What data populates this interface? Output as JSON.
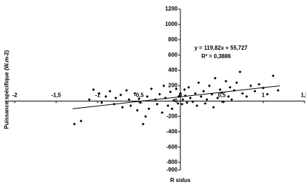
{
  "chart_data": {
    "type": "scatter",
    "x_label": "R sidus",
    "y_label": "Puissance spécifique (W.m-2)",
    "xlim": [
      -2,
      1.5
    ],
    "ylim": [
      -900,
      1200
    ],
    "xticks": [
      -2,
      {
        "value": -1.5,
        "label": "-1,5"
      },
      -1,
      {
        "value": -0.5,
        "label": "-0,5"
      },
      0,
      {
        "value": 0.5,
        "label": "0,5"
      },
      1,
      {
        "value": 1.5,
        "label": "1,5"
      }
    ],
    "yticks": [
      1200,
      1000,
      800,
      600,
      400,
      200,
      0,
      -200,
      -400,
      -600,
      -800,
      -900
    ],
    "series": [
      {
        "color": "#000000",
        "x": [
          -1.28,
          -1.2,
          -1.1,
          -1.05,
          -0.98,
          -0.95,
          -0.9,
          -0.85,
          -0.8,
          -0.78,
          -0.72,
          -0.7,
          -0.65,
          -0.62,
          -0.6,
          -0.55,
          -0.52,
          -0.5,
          -0.48,
          -0.45,
          -0.42,
          -0.4,
          -0.38,
          -0.35,
          -0.3,
          -0.28,
          -0.25,
          -0.22,
          -0.2,
          -0.18,
          -0.15,
          -0.12,
          -0.1,
          -0.08,
          -0.05,
          -0.03,
          -0.02,
          0.0,
          0.02,
          0.03,
          0.05,
          0.06,
          0.08,
          0.1,
          0.12,
          0.15,
          0.18,
          0.2,
          0.22,
          0.25,
          0.28,
          0.3,
          0.32,
          0.35,
          0.38,
          0.4,
          0.42,
          0.45,
          0.48,
          0.5,
          0.52,
          0.55,
          0.58,
          0.6,
          0.62,
          0.65,
          0.68,
          0.72,
          0.75,
          0.8,
          0.85,
          0.9,
          0.95,
          1.0,
          1.05,
          1.12,
          1.18
        ],
        "values": [
          -300,
          -260,
          20,
          150,
          100,
          -20,
          60,
          130,
          -40,
          40,
          80,
          -80,
          140,
          20,
          -60,
          100,
          -120,
          30,
          -20,
          -300,
          -200,
          60,
          -100,
          160,
          20,
          -40,
          90,
          -150,
          200,
          40,
          -60,
          120,
          -100,
          10,
          160,
          -30,
          60,
          100,
          -40,
          20,
          150,
          70,
          -20,
          180,
          40,
          -10,
          100,
          -60,
          240,
          60,
          130,
          -30,
          20,
          200,
          90,
          -80,
          300,
          40,
          150,
          110,
          -10,
          260,
          60,
          180,
          20,
          140,
          240,
          380,
          100,
          60,
          200,
          130,
          220,
          170,
          90,
          330,
          140
        ]
      }
    ],
    "trendline": {
      "slope": 119.82,
      "intercept": 55.727,
      "x_range": [
        -1.3,
        1.2
      ],
      "equation": "y = 119,82x + 55,727",
      "r2": "R² = 0,3886"
    }
  }
}
